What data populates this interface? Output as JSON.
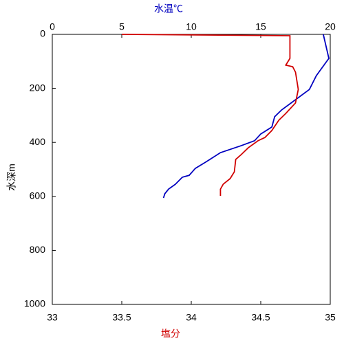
{
  "chart_data": {
    "type": "profile",
    "x_label": "塩分",
    "x2_label": "水温℃",
    "y_label": "水深m",
    "xlim": [
      33,
      35
    ],
    "xticks": [
      33,
      33.5,
      34,
      34.5,
      35
    ],
    "x2lim": [
      0,
      20
    ],
    "x2ticks": [
      0,
      5,
      10,
      15,
      20
    ],
    "ylim": [
      0,
      1000
    ],
    "yticks": [
      0,
      200,
      400,
      600,
      800,
      1000
    ],
    "y_inverted": true,
    "series": [
      {
        "color": "#0000c0",
        "axis": "x2",
        "x": [
          19.5,
          19.9,
          19.0,
          18.5,
          17.5,
          16.5,
          16.0,
          15.8,
          15.0,
          14.55,
          13.6,
          12.1,
          11.1,
          10.3,
          9.85,
          9.36,
          8.86,
          8.37,
          8.1,
          8.0
        ],
        "y": [
          0,
          89,
          153,
          204,
          242,
          280,
          305,
          343,
          369,
          394,
          412,
          438,
          471,
          496,
          522,
          529,
          555,
          573,
          590,
          606
        ]
      },
      {
        "color": "#d00000",
        "axis": "x",
        "x": [
          33.5,
          34.71,
          34.71,
          34.68,
          34.73,
          34.75,
          34.77,
          34.75,
          34.68,
          34.63,
          34.58,
          34.53,
          34.48,
          34.41,
          34.36,
          34.32,
          34.31,
          34.28,
          34.23,
          34.21,
          34.21
        ],
        "y": [
          0,
          5,
          89,
          114,
          120,
          140,
          204,
          254,
          293,
          318,
          356,
          382,
          394,
          420,
          445,
          463,
          509,
          534,
          555,
          573,
          598
        ]
      }
    ]
  }
}
